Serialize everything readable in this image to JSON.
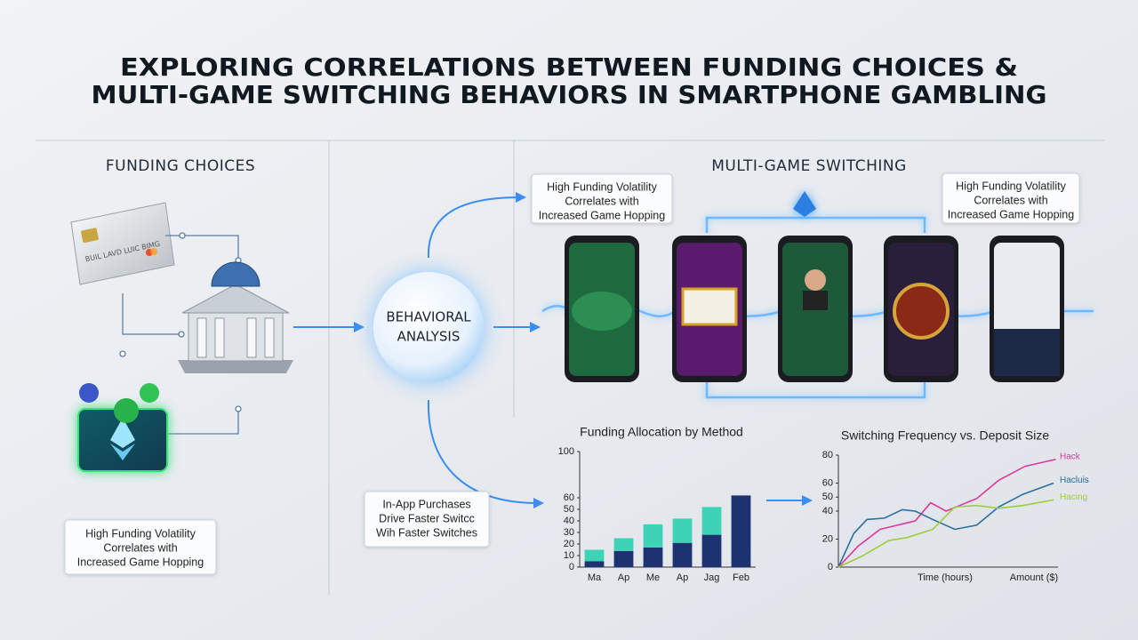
{
  "title_lines": [
    "EXPLORING CORRELATIONS BETWEEN FUNDING CHOICES &",
    "MULTI-GAME SWITCHING BEHAVIORS IN SMARTPHONE GAMBLING"
  ],
  "funding_heading": "FUNDING CHOICES",
  "switching_heading": "MULTI-GAME SWITCHING",
  "card_text": "BUIL LAVD LUIC BIMG",
  "center_lines": [
    "BEHAVIORAL",
    "ANALYSIS"
  ],
  "callouts": {
    "funding": [
      "High Funding Volatility",
      "Correlates with",
      "Increased Game Hopping"
    ],
    "top_middle": [
      "High Funding Volatility",
      "Correlates with",
      "Increased Game Hopping"
    ],
    "top_right": [
      "High Funding Volatility",
      "Correlates with",
      "Increased Game Hopping"
    ],
    "in_app": [
      "In-App Purchases",
      "Drive Faster Switcc",
      "Wih Faster Switches"
    ]
  },
  "chart_data": [
    {
      "type": "bar",
      "stacked": true,
      "title": "Funding Allocation by Method",
      "categories": [
        "Ma",
        "Ap",
        "Me",
        "Ap",
        "Jag",
        "Feb"
      ],
      "series": [
        {
          "color": "#1d3270",
          "values": [
            5,
            14,
            17,
            21,
            28,
            62
          ]
        },
        {
          "color": "#3fd3b6",
          "values": [
            10,
            11,
            20,
            21,
            24,
            0
          ]
        }
      ],
      "ylim": [
        0,
        100
      ],
      "yticks": [
        0,
        10,
        20,
        30,
        40,
        50,
        60,
        100
      ]
    },
    {
      "type": "line",
      "title": "Switching Frequency vs. Deposit Size",
      "xlabel": "Time (hours)",
      "xlabel_right": "Amount ($)",
      "xlim": [
        0,
        10
      ],
      "ylim": [
        0,
        80
      ],
      "yticks": [
        0,
        20,
        40,
        50,
        60,
        80
      ],
      "series": [
        {
          "name": "Hack",
          "color": "#e0379b",
          "x": [
            0,
            0.9,
            1.9,
            2.7,
            3.5,
            4.2,
            4.9,
            6.3,
            7.3,
            8.5,
            9.9
          ],
          "values": [
            0,
            15,
            27,
            30,
            33,
            46,
            40,
            49,
            62,
            72,
            77
          ]
        },
        {
          "name": "Hacluis",
          "color": "#2a6f9c",
          "x": [
            0,
            0.7,
            1.3,
            2.1,
            2.9,
            3.5,
            4.3,
            5.3,
            6.3,
            7.3,
            8.4,
            9.8
          ],
          "values": [
            0,
            24,
            34,
            35,
            41,
            40,
            34,
            27,
            30,
            43,
            52,
            60
          ]
        },
        {
          "name": "Hacing",
          "color": "#9fcc3a",
          "x": [
            0,
            1.1,
            2.3,
            3.1,
            4.3,
            5.3,
            6.3,
            7.3,
            8.4,
            9.8
          ],
          "values": [
            0,
            8,
            19,
            21,
            27,
            43,
            44,
            42,
            44,
            48
          ]
        }
      ]
    }
  ]
}
